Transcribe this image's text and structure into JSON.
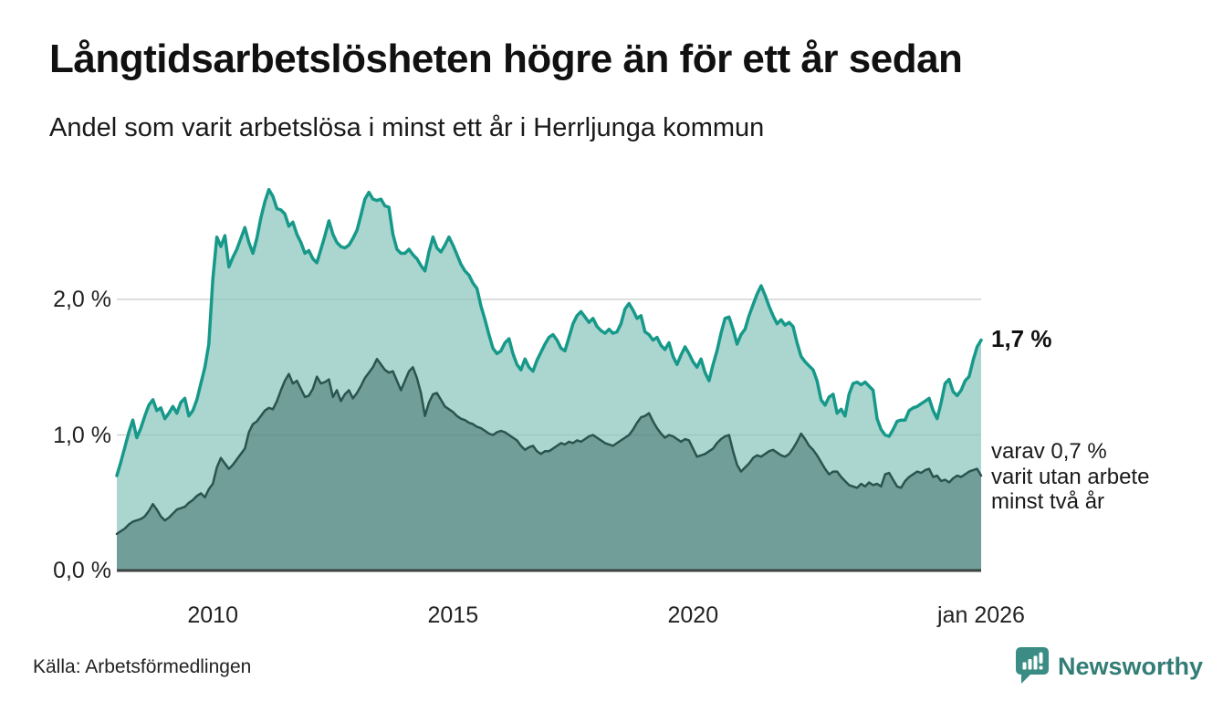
{
  "header": {
    "title": "Långtidsarbetslösheten högre än för ett år sedan",
    "subtitle": "Andel som varit arbetslösa i minst ett år i Herrljunga kommun"
  },
  "chart_data": {
    "type": "area",
    "title": "Långtidsarbetslösheten högre än för ett år sedan",
    "subtitle": "Andel som varit arbetslösa i minst ett år i Herrljunga kommun",
    "unit": "%",
    "x_start": "jan 2008",
    "x_end": "jan 2026",
    "points_per_series": 217,
    "x_ticks": [
      {
        "label": "2010",
        "month": 24
      },
      {
        "label": "2015",
        "month": 84
      },
      {
        "label": "2020",
        "month": 144
      },
      {
        "label": "jan 2026",
        "month": 216
      }
    ],
    "y_ticks": [
      {
        "label": "0,0 %",
        "value": 0
      },
      {
        "label": "1,0 %",
        "value": 1
      },
      {
        "label": "2,0 %",
        "value": 2
      }
    ],
    "ylim": [
      0,
      2.95
    ],
    "grid_on": true,
    "grid_color": "#e2e2e2",
    "axis_color": "#3b4240",
    "series": [
      {
        "name": "arbetslösa minst ett år",
        "color": "#17998a",
        "fill": "#abd6d0",
        "end_value": 1.7,
        "values": [
          0.7,
          0.8,
          0.91,
          1.02,
          1.11,
          0.98,
          1.05,
          1.14,
          1.22,
          1.26,
          1.18,
          1.2,
          1.12,
          1.16,
          1.21,
          1.16,
          1.24,
          1.27,
          1.14,
          1.18,
          1.26,
          1.38,
          1.5,
          1.67,
          2.15,
          2.46,
          2.39,
          2.47,
          2.24,
          2.31,
          2.37,
          2.45,
          2.53,
          2.42,
          2.34,
          2.45,
          2.6,
          2.72,
          2.81,
          2.76,
          2.67,
          2.66,
          2.63,
          2.54,
          2.57,
          2.48,
          2.42,
          2.34,
          2.36,
          2.3,
          2.27,
          2.37,
          2.47,
          2.58,
          2.48,
          2.42,
          2.39,
          2.38,
          2.4,
          2.45,
          2.51,
          2.62,
          2.74,
          2.79,
          2.74,
          2.73,
          2.74,
          2.69,
          2.68,
          2.48,
          2.37,
          2.34,
          2.34,
          2.37,
          2.33,
          2.3,
          2.25,
          2.21,
          2.35,
          2.46,
          2.38,
          2.35,
          2.4,
          2.46,
          2.4,
          2.33,
          2.26,
          2.21,
          2.18,
          2.12,
          2.08,
          1.95,
          1.85,
          1.74,
          1.64,
          1.6,
          1.62,
          1.68,
          1.71,
          1.6,
          1.52,
          1.48,
          1.56,
          1.5,
          1.47,
          1.55,
          1.61,
          1.67,
          1.72,
          1.74,
          1.7,
          1.64,
          1.62,
          1.72,
          1.82,
          1.88,
          1.91,
          1.87,
          1.83,
          1.86,
          1.8,
          1.77,
          1.75,
          1.78,
          1.75,
          1.76,
          1.82,
          1.93,
          1.97,
          1.92,
          1.86,
          1.88,
          1.76,
          1.74,
          1.7,
          1.72,
          1.66,
          1.63,
          1.68,
          1.58,
          1.52,
          1.59,
          1.65,
          1.6,
          1.54,
          1.5,
          1.56,
          1.46,
          1.4,
          1.52,
          1.62,
          1.75,
          1.86,
          1.87,
          1.78,
          1.67,
          1.74,
          1.78,
          1.88,
          1.96,
          2.04,
          2.1,
          2.03,
          1.95,
          1.88,
          1.82,
          1.85,
          1.81,
          1.83,
          1.8,
          1.68,
          1.58,
          1.54,
          1.51,
          1.48,
          1.4,
          1.26,
          1.22,
          1.28,
          1.3,
          1.16,
          1.19,
          1.14,
          1.3,
          1.38,
          1.39,
          1.37,
          1.39,
          1.36,
          1.33,
          1.12,
          1.04,
          1.0,
          0.99,
          1.04,
          1.1,
          1.11,
          1.11,
          1.18,
          1.2,
          1.21,
          1.23,
          1.25,
          1.27,
          1.18,
          1.12,
          1.24,
          1.38,
          1.41,
          1.32,
          1.29,
          1.33,
          1.4,
          1.43,
          1.55,
          1.65,
          1.7
        ]
      },
      {
        "name": "varav utan arbete minst två år",
        "color": "#2b534f",
        "fill": "#719e98",
        "end_value": 0.7,
        "values": [
          0.27,
          0.29,
          0.31,
          0.34,
          0.36,
          0.37,
          0.38,
          0.4,
          0.44,
          0.49,
          0.45,
          0.4,
          0.37,
          0.39,
          0.42,
          0.45,
          0.46,
          0.47,
          0.5,
          0.52,
          0.55,
          0.57,
          0.54,
          0.6,
          0.64,
          0.76,
          0.83,
          0.79,
          0.75,
          0.78,
          0.82,
          0.86,
          0.9,
          1.02,
          1.08,
          1.1,
          1.14,
          1.18,
          1.2,
          1.19,
          1.25,
          1.33,
          1.4,
          1.45,
          1.38,
          1.4,
          1.34,
          1.28,
          1.29,
          1.34,
          1.43,
          1.38,
          1.39,
          1.41,
          1.28,
          1.33,
          1.25,
          1.3,
          1.33,
          1.27,
          1.31,
          1.36,
          1.42,
          1.46,
          1.5,
          1.56,
          1.52,
          1.48,
          1.46,
          1.47,
          1.4,
          1.33,
          1.4,
          1.47,
          1.5,
          1.42,
          1.31,
          1.14,
          1.24,
          1.3,
          1.31,
          1.26,
          1.21,
          1.19,
          1.17,
          1.14,
          1.12,
          1.11,
          1.09,
          1.08,
          1.06,
          1.05,
          1.03,
          1.01,
          1.0,
          1.02,
          1.03,
          1.02,
          1.0,
          0.98,
          0.96,
          0.92,
          0.89,
          0.91,
          0.92,
          0.88,
          0.86,
          0.88,
          0.88,
          0.9,
          0.92,
          0.94,
          0.93,
          0.95,
          0.94,
          0.96,
          0.95,
          0.97,
          0.99,
          1.0,
          0.98,
          0.96,
          0.94,
          0.93,
          0.92,
          0.94,
          0.96,
          0.98,
          1.0,
          1.04,
          1.09,
          1.13,
          1.14,
          1.16,
          1.1,
          1.05,
          1.01,
          0.98,
          1.0,
          0.99,
          0.97,
          0.95,
          0.97,
          0.96,
          0.9,
          0.84,
          0.85,
          0.86,
          0.88,
          0.9,
          0.94,
          0.97,
          0.99,
          1.0,
          0.88,
          0.78,
          0.73,
          0.76,
          0.79,
          0.83,
          0.85,
          0.84,
          0.86,
          0.88,
          0.89,
          0.87,
          0.85,
          0.84,
          0.86,
          0.9,
          0.95,
          1.01,
          0.97,
          0.92,
          0.89,
          0.85,
          0.8,
          0.75,
          0.71,
          0.73,
          0.73,
          0.69,
          0.66,
          0.63,
          0.62,
          0.61,
          0.64,
          0.62,
          0.65,
          0.63,
          0.64,
          0.62,
          0.71,
          0.72,
          0.67,
          0.62,
          0.61,
          0.66,
          0.69,
          0.71,
          0.73,
          0.72,
          0.74,
          0.75,
          0.69,
          0.7,
          0.66,
          0.67,
          0.65,
          0.68,
          0.7,
          0.69,
          0.71,
          0.73,
          0.74,
          0.75,
          0.7
        ]
      }
    ],
    "annotations": {
      "end_total": "1,7 %",
      "end_sub": [
        "varav 0,7 %",
        "varit utan arbete",
        "minst två år"
      ]
    },
    "legend_position": "none"
  },
  "footer": {
    "source": "Källa: Arbetsförmedlingen",
    "brand": "Newsworthy"
  },
  "colors": {
    "accent_teal": "#17998a",
    "light_fill": "#abd6d0",
    "dark_fill": "#719e98",
    "dark_line": "#2b534f",
    "brand_teal": "#3a8c84",
    "brand_text": "#337d76"
  }
}
